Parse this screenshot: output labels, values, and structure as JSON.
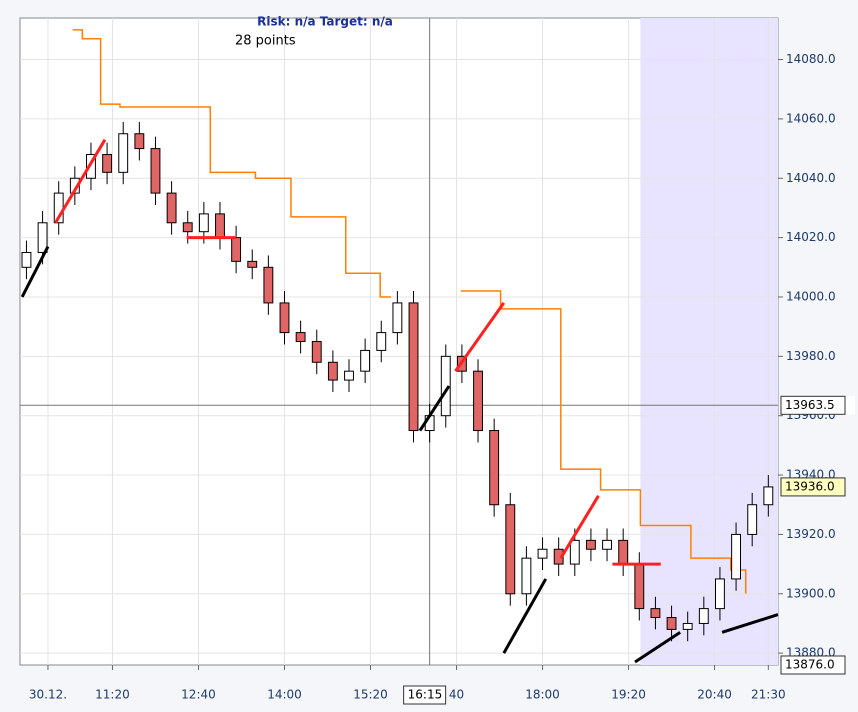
{
  "chart_data": {
    "type": "candlestick",
    "header": "Risk: n/a  Target: n/a",
    "subheader": "28 points",
    "x": [
      600,
      615,
      630,
      645,
      660,
      675,
      690,
      705,
      720,
      735,
      750,
      765,
      780,
      795,
      810,
      825,
      840,
      855,
      870,
      885,
      900,
      915,
      930,
      945,
      960,
      975,
      990,
      1005,
      1020,
      1035,
      1050,
      1065,
      1080,
      1095,
      1110,
      1125,
      1140,
      1155,
      1170,
      1185,
      1200,
      1215,
      1230,
      1245,
      1260,
      1275,
      1290
    ],
    "open": [
      14010,
      14015,
      14025,
      14035,
      14040,
      14048,
      14042,
      14055,
      14050,
      14035,
      14025,
      14022,
      14028,
      14020,
      14012,
      14010,
      13998,
      13988,
      13985,
      13978,
      13972,
      13975,
      13982,
      13988,
      13998,
      13955,
      13960,
      13980,
      13975,
      13955,
      13930,
      13900,
      13912,
      13915,
      13910,
      13918,
      13915,
      13918,
      13910,
      13895,
      13892,
      13888,
      13890,
      13895,
      13905,
      13920,
      13930
    ],
    "high": [
      14019,
      14029,
      14039,
      14044,
      14052,
      14052,
      14059,
      14059,
      14054,
      14039,
      14029,
      14032,
      14032,
      14024,
      14016,
      14014,
      14002,
      13992,
      13989,
      13982,
      13979,
      13986,
      13992,
      14002,
      14002,
      13964,
      13984,
      13984,
      13979,
      13959,
      13934,
      13916,
      13919,
      13919,
      13922,
      13922,
      13922,
      13922,
      13914,
      13899,
      13896,
      13894,
      13899,
      13909,
      13924,
      13934,
      13940
    ],
    "low": [
      14006,
      14011,
      14021,
      14031,
      14036,
      14038,
      14038,
      14046,
      14031,
      14021,
      14018,
      14018,
      14016,
      14008,
      14006,
      13994,
      13984,
      13981,
      13974,
      13968,
      13968,
      13971,
      13978,
      13984,
      13951,
      13951,
      13956,
      13971,
      13951,
      13926,
      13896,
      13896,
      13908,
      13906,
      13906,
      13911,
      13911,
      13906,
      13891,
      13888,
      13884,
      13884,
      13886,
      13891,
      13901,
      13916,
      13926
    ],
    "close": [
      14015,
      14025,
      14035,
      14040,
      14048,
      14042,
      14055,
      14050,
      14035,
      14025,
      14022,
      14028,
      14020,
      14012,
      14010,
      13998,
      13988,
      13985,
      13978,
      13972,
      13975,
      13982,
      13988,
      13998,
      13955,
      13960,
      13980,
      13975,
      13955,
      13930,
      13900,
      13912,
      13915,
      13910,
      13918,
      13915,
      13918,
      13910,
      13895,
      13892,
      13888,
      13890,
      13895,
      13905,
      13920,
      13930,
      13936
    ],
    "up_color": "#ffffff",
    "down_color": "#e06666",
    "stop_line": {
      "color": "#ff8000",
      "x": [
        643,
        652,
        669,
        687,
        771,
        813,
        846,
        897,
        929,
        939,
        null,
        1004,
        1041,
        1097,
        1134,
        1171,
        1218,
        1255,
        1269
      ],
      "values": [
        14090,
        14087,
        14065,
        14064,
        14042,
        14040,
        14027,
        14008,
        14000,
        14000,
        null,
        14002,
        13996,
        13942,
        13935,
        13923,
        13912,
        13908,
        13900
      ]
    },
    "trend_lines": [
      {
        "color": "#000000",
        "x": [
          596,
          620
        ],
        "values": [
          14000,
          14017
        ]
      },
      {
        "color": "#000000",
        "x": [
          966,
          993
        ],
        "values": [
          13955,
          13970
        ]
      },
      {
        "color": "#000000",
        "x": [
          1044,
          1083
        ],
        "values": [
          13880,
          13905
        ]
      },
      {
        "color": "#000000",
        "x": [
          1166,
          1208
        ],
        "values": [
          13877,
          13887
        ]
      },
      {
        "color": "#000000",
        "x": [
          1247,
          1299
        ],
        "values": [
          13887,
          13893
        ]
      },
      {
        "color": "#ff2020",
        "x": [
          627,
          673
        ],
        "values": [
          14025,
          14053
        ]
      },
      {
        "color": "#ff2020",
        "x": [
          999,
          1044
        ],
        "values": [
          13975,
          13998
        ]
      },
      {
        "color": "#ff2020",
        "x": [
          1097,
          1132
        ],
        "values": [
          13912,
          13933
        ]
      },
      {
        "color": "#ff2020",
        "x": [
          749,
          795
        ],
        "values": [
          14020,
          14020
        ]
      },
      {
        "color": "#ff2020",
        "x": [
          1145,
          1190
        ],
        "values": [
          13910,
          13910
        ]
      }
    ],
    "shade": {
      "color": "#e8e4ff",
      "x": [
        1171,
        1299
      ]
    },
    "xlim": [
      594,
      1299
    ],
    "ylim": [
      13876,
      14094
    ],
    "xticks": [
      {
        "value": 620,
        "label": "30.12."
      },
      {
        "value": 680,
        "label": "11:20"
      },
      {
        "value": 760,
        "label": "12:40"
      },
      {
        "value": 840,
        "label": "14:00"
      },
      {
        "value": 920,
        "label": "15:20"
      },
      {
        "value": 1000,
        "label": "40"
      },
      {
        "value": 1080,
        "label": "18:00"
      },
      {
        "value": 1160,
        "label": "19:20"
      },
      {
        "value": 1240,
        "label": "20:40"
      },
      {
        "value": 1290,
        "label": "21:30"
      }
    ],
    "yticks": [
      {
        "value": 13880,
        "label": "13880.0"
      },
      {
        "value": 13900,
        "label": "13900.0"
      },
      {
        "value": 13920,
        "label": "13920.0"
      },
      {
        "value": 13940,
        "label": "13940.0"
      },
      {
        "value": 13960,
        "label": "13960.0"
      },
      {
        "value": 13980,
        "label": "13980.0"
      },
      {
        "value": 14000,
        "label": "14000.0"
      },
      {
        "value": 14020,
        "label": "14020.0"
      },
      {
        "value": 14040,
        "label": "14040.0"
      },
      {
        "value": 14060,
        "label": "14060.0"
      },
      {
        "value": 14080,
        "label": "14080.0"
      }
    ],
    "grid": true,
    "crosshair": {
      "x": {
        "value": 975,
        "label": "16:15"
      },
      "y": {
        "value": 13963.5,
        "label": "13963.5"
      }
    },
    "price_markers": [
      {
        "value": 13936.0,
        "label": "13936.0",
        "color": "#ffffc0"
      },
      {
        "value": 13876.0,
        "label": "13876.0",
        "color": "#ffffff"
      }
    ]
  }
}
